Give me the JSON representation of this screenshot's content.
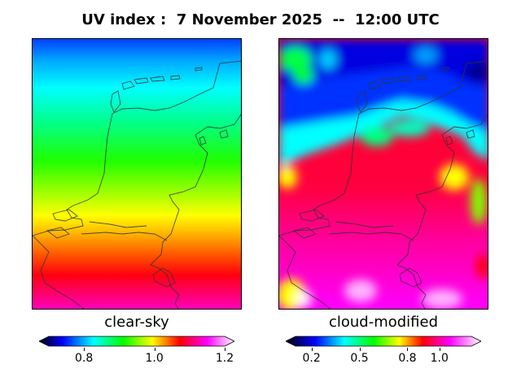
{
  "title": "UV index :  7 November 2025  --  12:00 UTC",
  "panels": [
    {
      "label": "clear-sky",
      "colorbar": {
        "min": 0.7,
        "max": 1.2,
        "ticks": [
          {
            "value": 0.8,
            "label": "0.8"
          },
          {
            "value": 1.0,
            "label": "1.0"
          },
          {
            "value": 1.2,
            "label": "1.2"
          }
        ]
      }
    },
    {
      "label": "cloud-modified",
      "colorbar": {
        "min": 0.1,
        "max": 1.2,
        "ticks": [
          {
            "value": 0.2,
            "label": "0.2"
          },
          {
            "value": 0.5,
            "label": "0.5"
          },
          {
            "value": 0.8,
            "label": "0.8"
          },
          {
            "value": 1.0,
            "label": "1.0"
          }
        ]
      }
    }
  ],
  "colors": {
    "palette": [
      "#000000",
      "#0000ff",
      "#00ffff",
      "#00ff00",
      "#ffff00",
      "#ff0000",
      "#ff00ff",
      "#ffffff"
    ],
    "coastline": "#333333"
  }
}
